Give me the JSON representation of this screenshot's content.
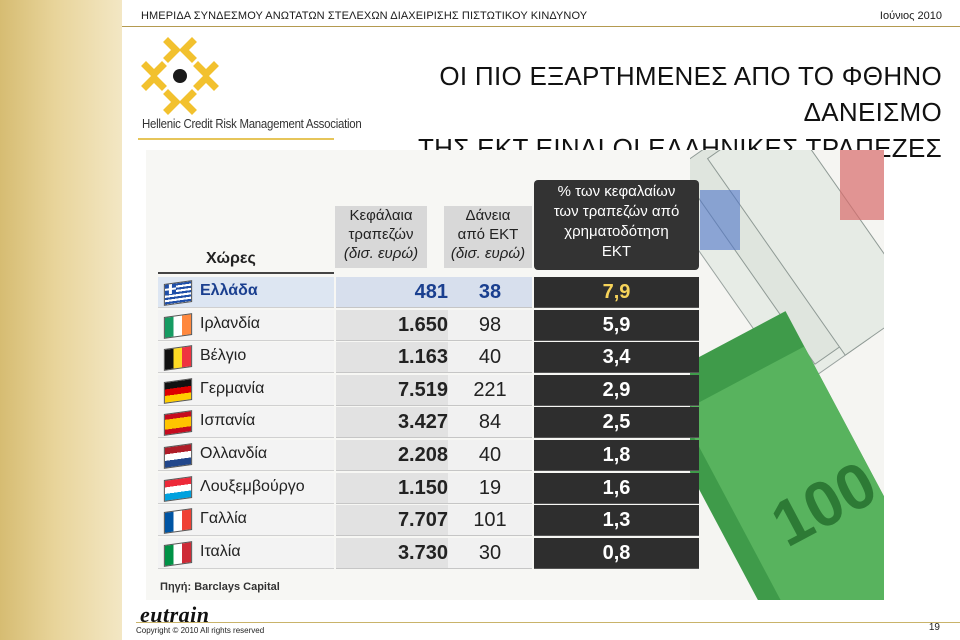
{
  "header": {
    "event": "ΗΜΕΡΙΔΑ ΣΥΝΔΕΣΜΟΥ ΑΝΩΤΑΤΩΝ ΣΤΕΛΕΧΩΝ ΔΙΑΧΕΙΡΙΣΗΣ ΠΙΣΤΩΤΙΚΟΥ ΚΙΝΔΥΝΟΥ",
    "date": "Ιούνιος  2010"
  },
  "logo": {
    "name": "Hellenic Credit Risk Management Association",
    "colors": {
      "gold": "#f2c12e",
      "dark": "#1a1a1a"
    }
  },
  "title": {
    "line1": "ΟΙ ΠΙΟ ΕΞΑΡΤΗΜΕΝΕΣ ΑΠΟ ΤΟ ΦΘΗΝΟ ΔΑΝΕΙΣΜΟ",
    "line2": "ΤΗΣ ΕΚΤ ΕΙΝΑΙ ΟΙ ΕΛΛΗΝΙΚΕΣ ΤΡΑΠΕΖΕΣ"
  },
  "table": {
    "headers": {
      "country": "Χώρες",
      "capital_l1": "Κεφάλαια",
      "capital_l2": "τραπεζών",
      "capital_l3": "(δισ. ευρώ)",
      "loans_l1": "Δάνεια",
      "loans_l2": "από ΕΚΤ",
      "loans_l3": "(δισ. ευρώ)",
      "pct_l1": "% των κεφαλαίων",
      "pct_l2": "των τραπεζών από",
      "pct_l3": "χρηματοδότηση",
      "pct_l4": "ΕΚΤ"
    },
    "rows": [
      {
        "country": "Ελλάδα",
        "capital": "481",
        "loans": "38",
        "pct": "7,9",
        "flag": "greece-flag"
      },
      {
        "country": "Ιρλανδία",
        "capital": "1.650",
        "loans": "98",
        "pct": "5,9",
        "flag": "ireland-flag"
      },
      {
        "country": "Βέλγιο",
        "capital": "1.163",
        "loans": "40",
        "pct": "3,4",
        "flag": "belgium-flag"
      },
      {
        "country": "Γερμανία",
        "capital": "7.519",
        "loans": "221",
        "pct": "2,9",
        "flag": "germany-flag"
      },
      {
        "country": "Ισπανία",
        "capital": "3.427",
        "loans": "84",
        "pct": "2,5",
        "flag": "spain-flag"
      },
      {
        "country": "Ολλανδία",
        "capital": "2.208",
        "loans": "40",
        "pct": "1,8",
        "flag": "netherlands-flag"
      },
      {
        "country": "Λουξεμβούργο",
        "capital": "1.150",
        "loans": "19",
        "pct": "1,6",
        "flag": "luxembourg-flag"
      },
      {
        "country": "Γαλλία",
        "capital": "7.707",
        "loans": "101",
        "pct": "1,3",
        "flag": "france-flag"
      },
      {
        "country": "Ιταλία",
        "capital": "3.730",
        "loans": "30",
        "pct": "0,8",
        "flag": "italy-flag"
      }
    ],
    "source": "Πηγή: Barclays Capital"
  },
  "footer": {
    "brand": "eutrain",
    "copyright": "Copyright  © 2010 All rights reserved",
    "page": "19"
  }
}
